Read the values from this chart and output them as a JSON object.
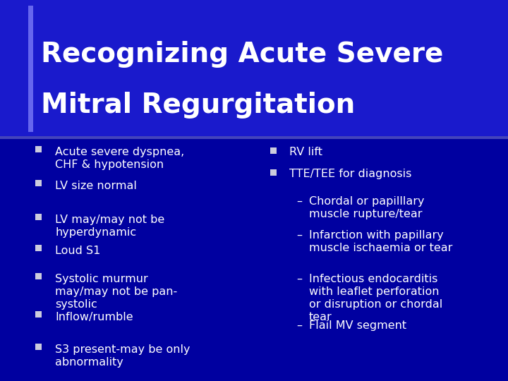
{
  "title_line1": "Recognizing Acute Severe",
  "title_line2": "Mitral Regurgitation",
  "bg_color": "#0000a0",
  "title_bg_color": "#1a1acc",
  "title_color": "#ffffff",
  "text_color": "#ffffff",
  "accent_v_color": "#6666ee",
  "accent_h_color": "#4444bb",
  "left_bullets": [
    "Acute severe dyspnea,\nCHF & hypotension",
    "LV size normal",
    "LV may/may not be\nhyperdynamic",
    "Loud S1",
    "Systolic murmur\nmay/may not be pan-\nsystolic",
    "Inflow/rumble",
    "S3 present-may be only\nabnormality"
  ],
  "right_bullets": [
    "RV lift",
    "TTE/TEE for diagnosis"
  ],
  "right_subbullets": [
    "Chordal or papilllary\nmuscle rupture/tear",
    "Infarction with papillary\nmuscle ischaemia or tear",
    "Infectious endocarditis\nwith leaflet perforation\nor disruption or chordal\ntear",
    "Flail MV segment"
  ],
  "figsize": [
    7.2,
    5.4
  ],
  "dpi": 100
}
